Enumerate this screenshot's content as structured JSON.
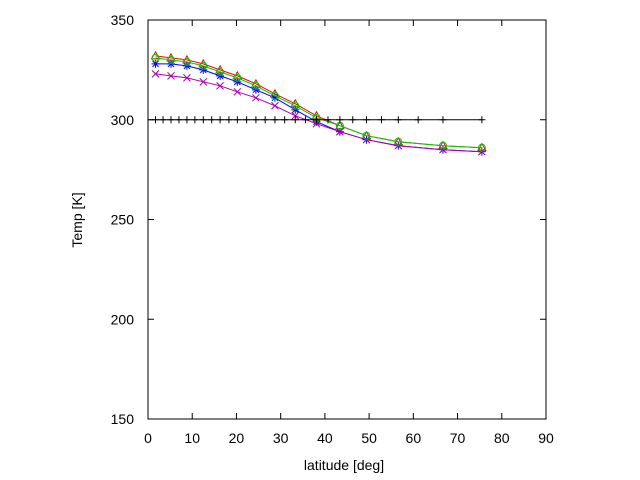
{
  "chart_data": {
    "type": "line",
    "title": "",
    "xlabel": "latitude [deg]",
    "ylabel": "Temp [K]",
    "xlim": [
      0,
      90
    ],
    "ylim": [
      150,
      350
    ],
    "xticks": [
      0,
      10,
      20,
      30,
      40,
      50,
      60,
      70,
      80,
      90
    ],
    "yticks": [
      150,
      200,
      250,
      300,
      350
    ],
    "grid": false,
    "legend": "none",
    "reference_line": {
      "y": 300,
      "x": [
        1.7,
        3.4,
        5.2,
        7.0,
        8.8,
        10.6,
        12.5,
        14.4,
        16.3,
        18.3,
        20.2,
        22.3,
        24.4,
        26.5,
        28.7,
        30.9,
        33.3,
        35.6,
        38.1,
        40.7,
        43.4,
        46.3,
        49.4,
        52.8,
        56.6,
        61.1,
        66.7,
        75.5
      ],
      "color": "#000000"
    },
    "series": [
      {
        "color": "#ff0000",
        "marker": "triangle",
        "x": [
          1.7,
          5.2,
          8.8,
          12.5,
          16.3,
          20.2,
          24.4,
          28.7,
          33.3,
          38.1,
          43.4,
          49.4,
          56.6,
          66.7,
          75.5
        ],
        "y": [
          332,
          331,
          330,
          328,
          325,
          322,
          318,
          313,
          308,
          302,
          297,
          292,
          289,
          287,
          286
        ]
      },
      {
        "color": "#0000ff",
        "marker": "star",
        "x": [
          1.7,
          5.2,
          8.8,
          12.5,
          16.3,
          20.2,
          24.4,
          28.7,
          33.3,
          38.1,
          43.4,
          49.4,
          56.6,
          66.7,
          75.5
        ],
        "y": [
          328,
          328,
          327,
          325,
          322,
          319,
          315,
          311,
          305,
          299,
          294,
          290,
          287,
          285,
          284
        ]
      },
      {
        "color": "#aa00aa",
        "marker": "x",
        "x": [
          1.7,
          5.2,
          8.8,
          12.5,
          16.3,
          20.2,
          24.4,
          28.7,
          33.3,
          38.1,
          43.4,
          49.4,
          56.6,
          66.7,
          75.5
        ],
        "y": [
          323,
          322,
          321,
          319,
          317,
          314,
          311,
          307,
          302,
          298,
          294,
          290,
          287,
          285,
          284
        ]
      },
      {
        "color": "#00cc00",
        "marker": "circle",
        "x": [
          1.7,
          5.2,
          8.8,
          12.5,
          16.3,
          20.2,
          24.4,
          28.7,
          33.3,
          38.1,
          43.4,
          49.4,
          56.6,
          66.7,
          75.5
        ],
        "y": [
          331,
          330,
          329,
          327,
          324,
          321,
          317,
          312,
          307,
          301,
          297,
          292,
          289,
          287,
          286
        ]
      }
    ]
  }
}
